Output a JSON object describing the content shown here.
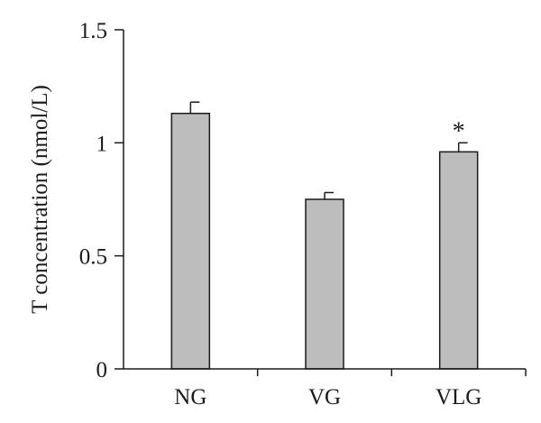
{
  "chart_data": {
    "type": "bar",
    "title": "",
    "xlabel": "",
    "ylabel": "T concentration (nmol/L)",
    "categories": [
      "NG",
      "VG",
      "VLG"
    ],
    "values": [
      1.13,
      0.75,
      0.96
    ],
    "error": [
      0.05,
      0.03,
      0.04
    ],
    "annotations": [
      "",
      "",
      "*"
    ],
    "ylim": [
      0,
      1.5
    ],
    "yticks": [
      0,
      0.5,
      1,
      1.5
    ],
    "ytick_labels": [
      "0",
      "0.5",
      "1",
      "1.5"
    ],
    "grid": false,
    "bar_color": "#bdbdbd",
    "bar_edge_color": "#1a1a1a"
  }
}
